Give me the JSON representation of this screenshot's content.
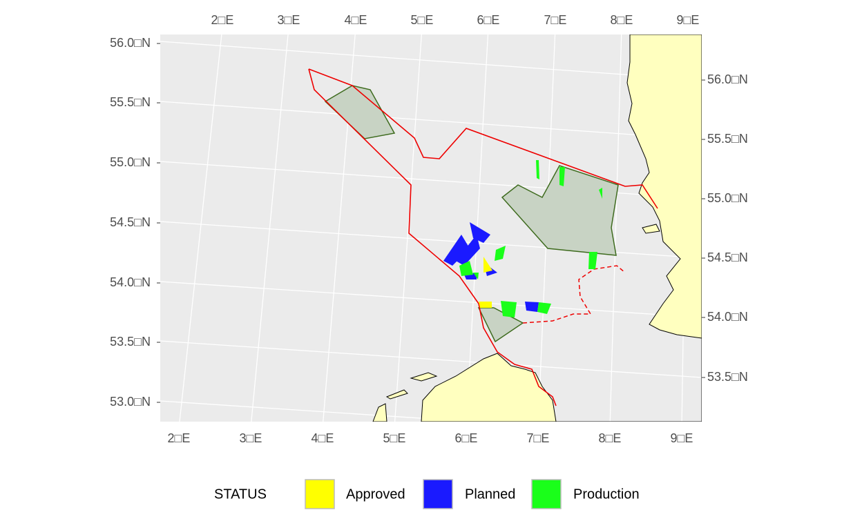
{
  "axes": {
    "top": [
      "2□E",
      "3□E",
      "4□E",
      "5□E",
      "6□E",
      "7□E",
      "8□E",
      "9□E"
    ],
    "bottom": [
      "2□E",
      "3□E",
      "4□E",
      "5□E",
      "6□E",
      "7□E",
      "8□E",
      "9□E"
    ],
    "left": [
      "56.0□N",
      "55.5□N",
      "55.0□N",
      "54.5□N",
      "54.0□N",
      "53.5□N",
      "53.0□N"
    ],
    "right": [
      "56.0□N",
      "55.5□N",
      "55.0□N",
      "54.5□N",
      "54.0□N",
      "53.5□N"
    ]
  },
  "legend": {
    "title": "STATUS",
    "items": [
      {
        "label": "Approved",
        "color": "#ffff00"
      },
      {
        "label": "Planned",
        "color": "#1a1aff"
      },
      {
        "label": "Production",
        "color": "#1aff1a"
      }
    ]
  }
}
